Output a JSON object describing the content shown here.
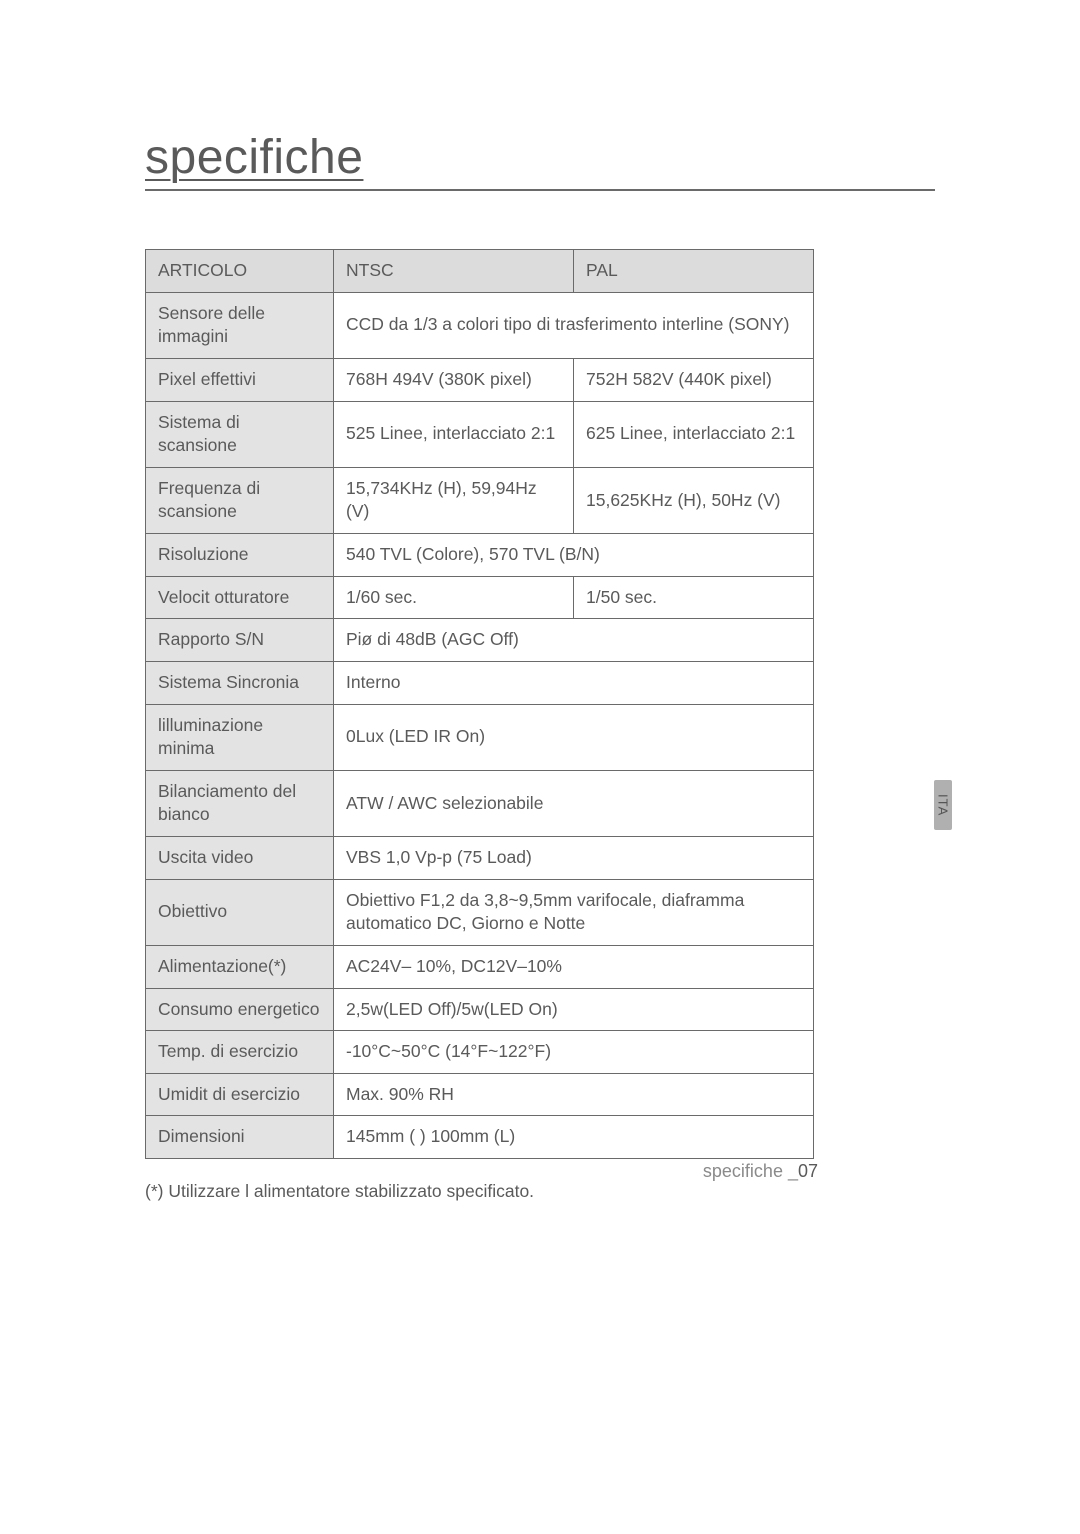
{
  "page": {
    "title": "specifiche",
    "footnote": "(*) Utilizzare l alimentatore stabilizzato specificato.",
    "footer_label": "specifiche _",
    "footer_page": "07",
    "side_tab": "ITA"
  },
  "table": {
    "header": {
      "item": "ARTICOLO",
      "ntsc": "NTSC",
      "pal": "PAL"
    },
    "col_widths": {
      "label": 188,
      "ntsc": 240,
      "pal": 240
    },
    "font_size": 17.5,
    "border_color": "#6a6a6a",
    "header_bg": "#dcdcdc",
    "label_bg": "#e3e3e3",
    "text_color": "#5a5a5a",
    "rows": [
      {
        "label": "Sensore delle immagini",
        "span": true,
        "value": "CCD da 1/3  a colori tipo di trasferimento interline (SONY)"
      },
      {
        "label": "Pixel effettivi",
        "ntsc": "768H   494V (380K pixel)",
        "pal": "752H   582V (440K pixel)"
      },
      {
        "label": "Sistema di scansione",
        "ntsc": "525 Linee, interlacciato 2:1",
        "pal": "625 Linee, interlacciato 2:1"
      },
      {
        "label": "Frequenza di scansione",
        "ntsc": "15,734KHz (H), 59,94Hz (V)",
        "pal": "15,625KHz (H), 50Hz (V)"
      },
      {
        "label": "Risoluzione",
        "span": true,
        "value": "540 TVL (Colore), 570 TVL (B/N)"
      },
      {
        "label": "Velocit  otturatore",
        "ntsc": "1/60 sec.",
        "pal": "1/50 sec."
      },
      {
        "label": "Rapporto S/N",
        "span": true,
        "value": "Piø di 48dB (AGC Off)"
      },
      {
        "label": "Sistema Sincronia",
        "span": true,
        "value": "Interno"
      },
      {
        "label": "lilluminazione minima",
        "span": true,
        "value": "0Lux (LED IR On)"
      },
      {
        "label": "Bilanciamento del bianco",
        "span": true,
        "value": "ATW / AWC selezionabile"
      },
      {
        "label": "Uscita video",
        "span": true,
        "value": "VBS 1,0 Vp-p (75  Load)"
      },
      {
        "label": "Obiettivo",
        "span": true,
        "value": "Obiettivo F1,2 da 3,8~9,5mm varifocale, diaframma automatico DC, Giorno e Notte"
      },
      {
        "label": "Alimentazione(*)",
        "span": true,
        "value": "AC24V– 10%, DC12V–10%"
      },
      {
        "label": "Consumo energetico",
        "span": true,
        "value": "2,5w(LED Off)/5w(LED On)"
      },
      {
        "label": "Temp. di esercizio",
        "span": true,
        "value": "-10°C~50°C (14°F~122°F)"
      },
      {
        "label": "Umidit  di esercizio",
        "span": true,
        "value": "Max. 90% RH"
      },
      {
        "label": "Dimensioni",
        "span": true,
        "value": "145mm ( )  100mm (L)"
      }
    ]
  }
}
